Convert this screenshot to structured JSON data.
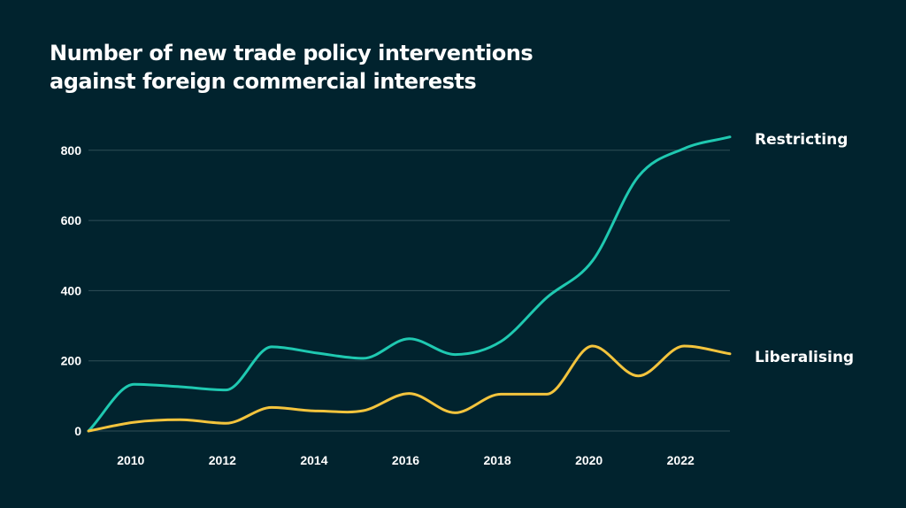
{
  "chart_data": {
    "type": "line",
    "title": "Number of new trade policy interventions against foreign commercial interests",
    "title_lines": [
      "Number of new trade policy interventions",
      "against foreign commercial interests"
    ],
    "xlabel": "",
    "ylabel": "",
    "x": [
      2009,
      2010,
      2011,
      2012,
      2013,
      2014,
      2015,
      2016,
      2017,
      2018,
      2019,
      2020,
      2021,
      2022,
      2023
    ],
    "xlim": [
      2009,
      2023
    ],
    "ylim": [
      0,
      840
    ],
    "x_ticks": [
      2010,
      2012,
      2014,
      2016,
      2018,
      2020,
      2022
    ],
    "y_ticks": [
      0,
      200,
      400,
      600,
      800
    ],
    "grid": "horizontal",
    "legend": "direct labels at line ends (right)",
    "background": "#01232e",
    "series": [
      {
        "name": "Restricting",
        "color": "#1fc9b1",
        "values": [
          0,
          133,
          126,
          117,
          240,
          222,
          207,
          263,
          218,
          255,
          380,
          485,
          725,
          805,
          838
        ]
      },
      {
        "name": "Liberalising",
        "color": "#f3c43d",
        "values": [
          0,
          25,
          32,
          22,
          67,
          57,
          58,
          107,
          52,
          105,
          105,
          242,
          157,
          242,
          220
        ]
      }
    ]
  }
}
